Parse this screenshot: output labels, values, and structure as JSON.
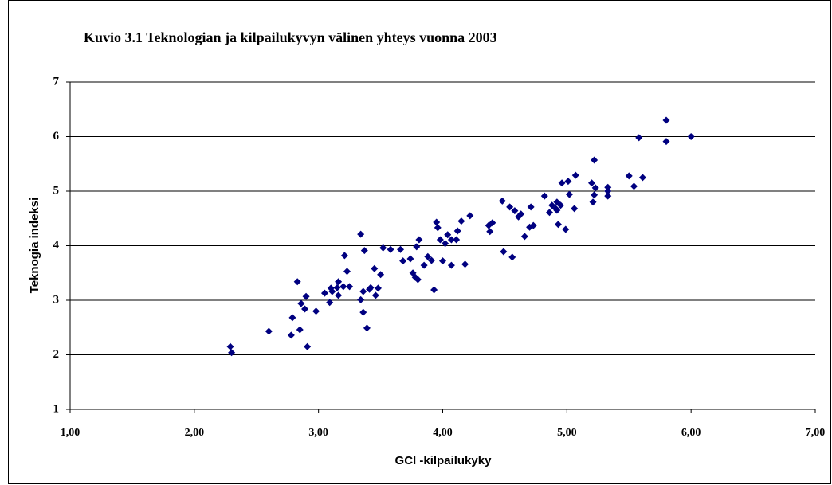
{
  "chart_data": {
    "type": "scatter",
    "title": "Kuvio 3.1 Teknologian ja kilpailukyvyn välinen yhteys vuonna 2003",
    "xlabel": "GCI -kilpailukyky",
    "ylabel": "Teknogia indeksi",
    "color": "#000080",
    "grid": true,
    "xlim": [
      1,
      7
    ],
    "ylim": [
      1,
      7
    ],
    "xticks": [
      {
        "value": 1,
        "label": "1,00"
      },
      {
        "value": 2,
        "label": "2,00"
      },
      {
        "value": 3,
        "label": "3,00"
      },
      {
        "value": 4,
        "label": "4,00"
      },
      {
        "value": 5,
        "label": "5,00"
      },
      {
        "value": 6,
        "label": "6,00"
      },
      {
        "value": 7,
        "label": "7,00"
      }
    ],
    "yticks": [
      1,
      2,
      3,
      4,
      5,
      6,
      7
    ],
    "x": [
      2.29,
      2.3,
      2.6,
      2.78,
      2.79,
      2.83,
      2.85,
      2.86,
      2.89,
      2.9,
      2.91,
      2.98,
      3.05,
      3.09,
      3.1,
      3.11,
      3.15,
      3.16,
      3.16,
      3.2,
      3.21,
      3.23,
      3.25,
      3.34,
      3.34,
      3.36,
      3.36,
      3.37,
      3.39,
      3.41,
      3.42,
      3.45,
      3.46,
      3.48,
      3.5,
      3.52,
      3.58,
      3.66,
      3.68,
      3.74,
      3.76,
      3.78,
      3.79,
      3.8,
      3.81,
      3.85,
      3.88,
      3.91,
      3.93,
      3.95,
      3.96,
      3.98,
      4.0,
      4.02,
      4.04,
      4.07,
      4.07,
      4.11,
      4.12,
      4.15,
      4.18,
      4.22,
      4.37,
      4.38,
      4.4,
      4.48,
      4.49,
      4.54,
      4.56,
      4.58,
      4.61,
      4.63,
      4.66,
      4.7,
      4.71,
      4.73,
      4.82,
      4.86,
      4.88,
      4.91,
      4.92,
      4.92,
      4.93,
      4.95,
      4.96,
      4.99,
      5.01,
      5.02,
      5.06,
      5.07,
      5.2,
      5.21,
      5.22,
      5.22,
      5.23,
      5.33,
      5.33,
      5.33,
      5.5,
      5.54,
      5.58,
      5.61,
      5.8,
      5.8,
      6.0
    ],
    "y": [
      2.15,
      2.04,
      2.43,
      2.36,
      2.68,
      3.34,
      2.46,
      2.94,
      2.84,
      3.07,
      2.15,
      2.8,
      3.13,
      2.96,
      3.22,
      3.16,
      3.23,
      3.09,
      3.34,
      3.25,
      3.82,
      3.53,
      3.25,
      3.01,
      4.21,
      2.78,
      3.16,
      3.91,
      2.49,
      3.2,
      3.23,
      3.58,
      3.09,
      3.22,
      3.47,
      3.96,
      3.93,
      3.93,
      3.72,
      3.76,
      3.5,
      3.42,
      3.98,
      3.38,
      4.11,
      3.64,
      3.8,
      3.73,
      3.19,
      4.43,
      4.33,
      4.11,
      3.72,
      4.04,
      4.2,
      4.11,
      3.64,
      4.11,
      4.27,
      4.45,
      3.66,
      4.55,
      4.37,
      4.26,
      4.42,
      4.82,
      3.89,
      4.71,
      3.79,
      4.64,
      4.53,
      4.58,
      4.17,
      4.34,
      4.71,
      4.37,
      4.91,
      4.61,
      4.74,
      4.68,
      4.65,
      4.8,
      4.39,
      4.74,
      5.15,
      4.3,
      5.18,
      4.94,
      4.68,
      5.29,
      5.15,
      4.8,
      5.57,
      4.93,
      5.06,
      5.07,
      4.91,
      5.0,
      5.28,
      5.09,
      5.98,
      5.25,
      6.3,
      5.91,
      6.0
    ]
  }
}
